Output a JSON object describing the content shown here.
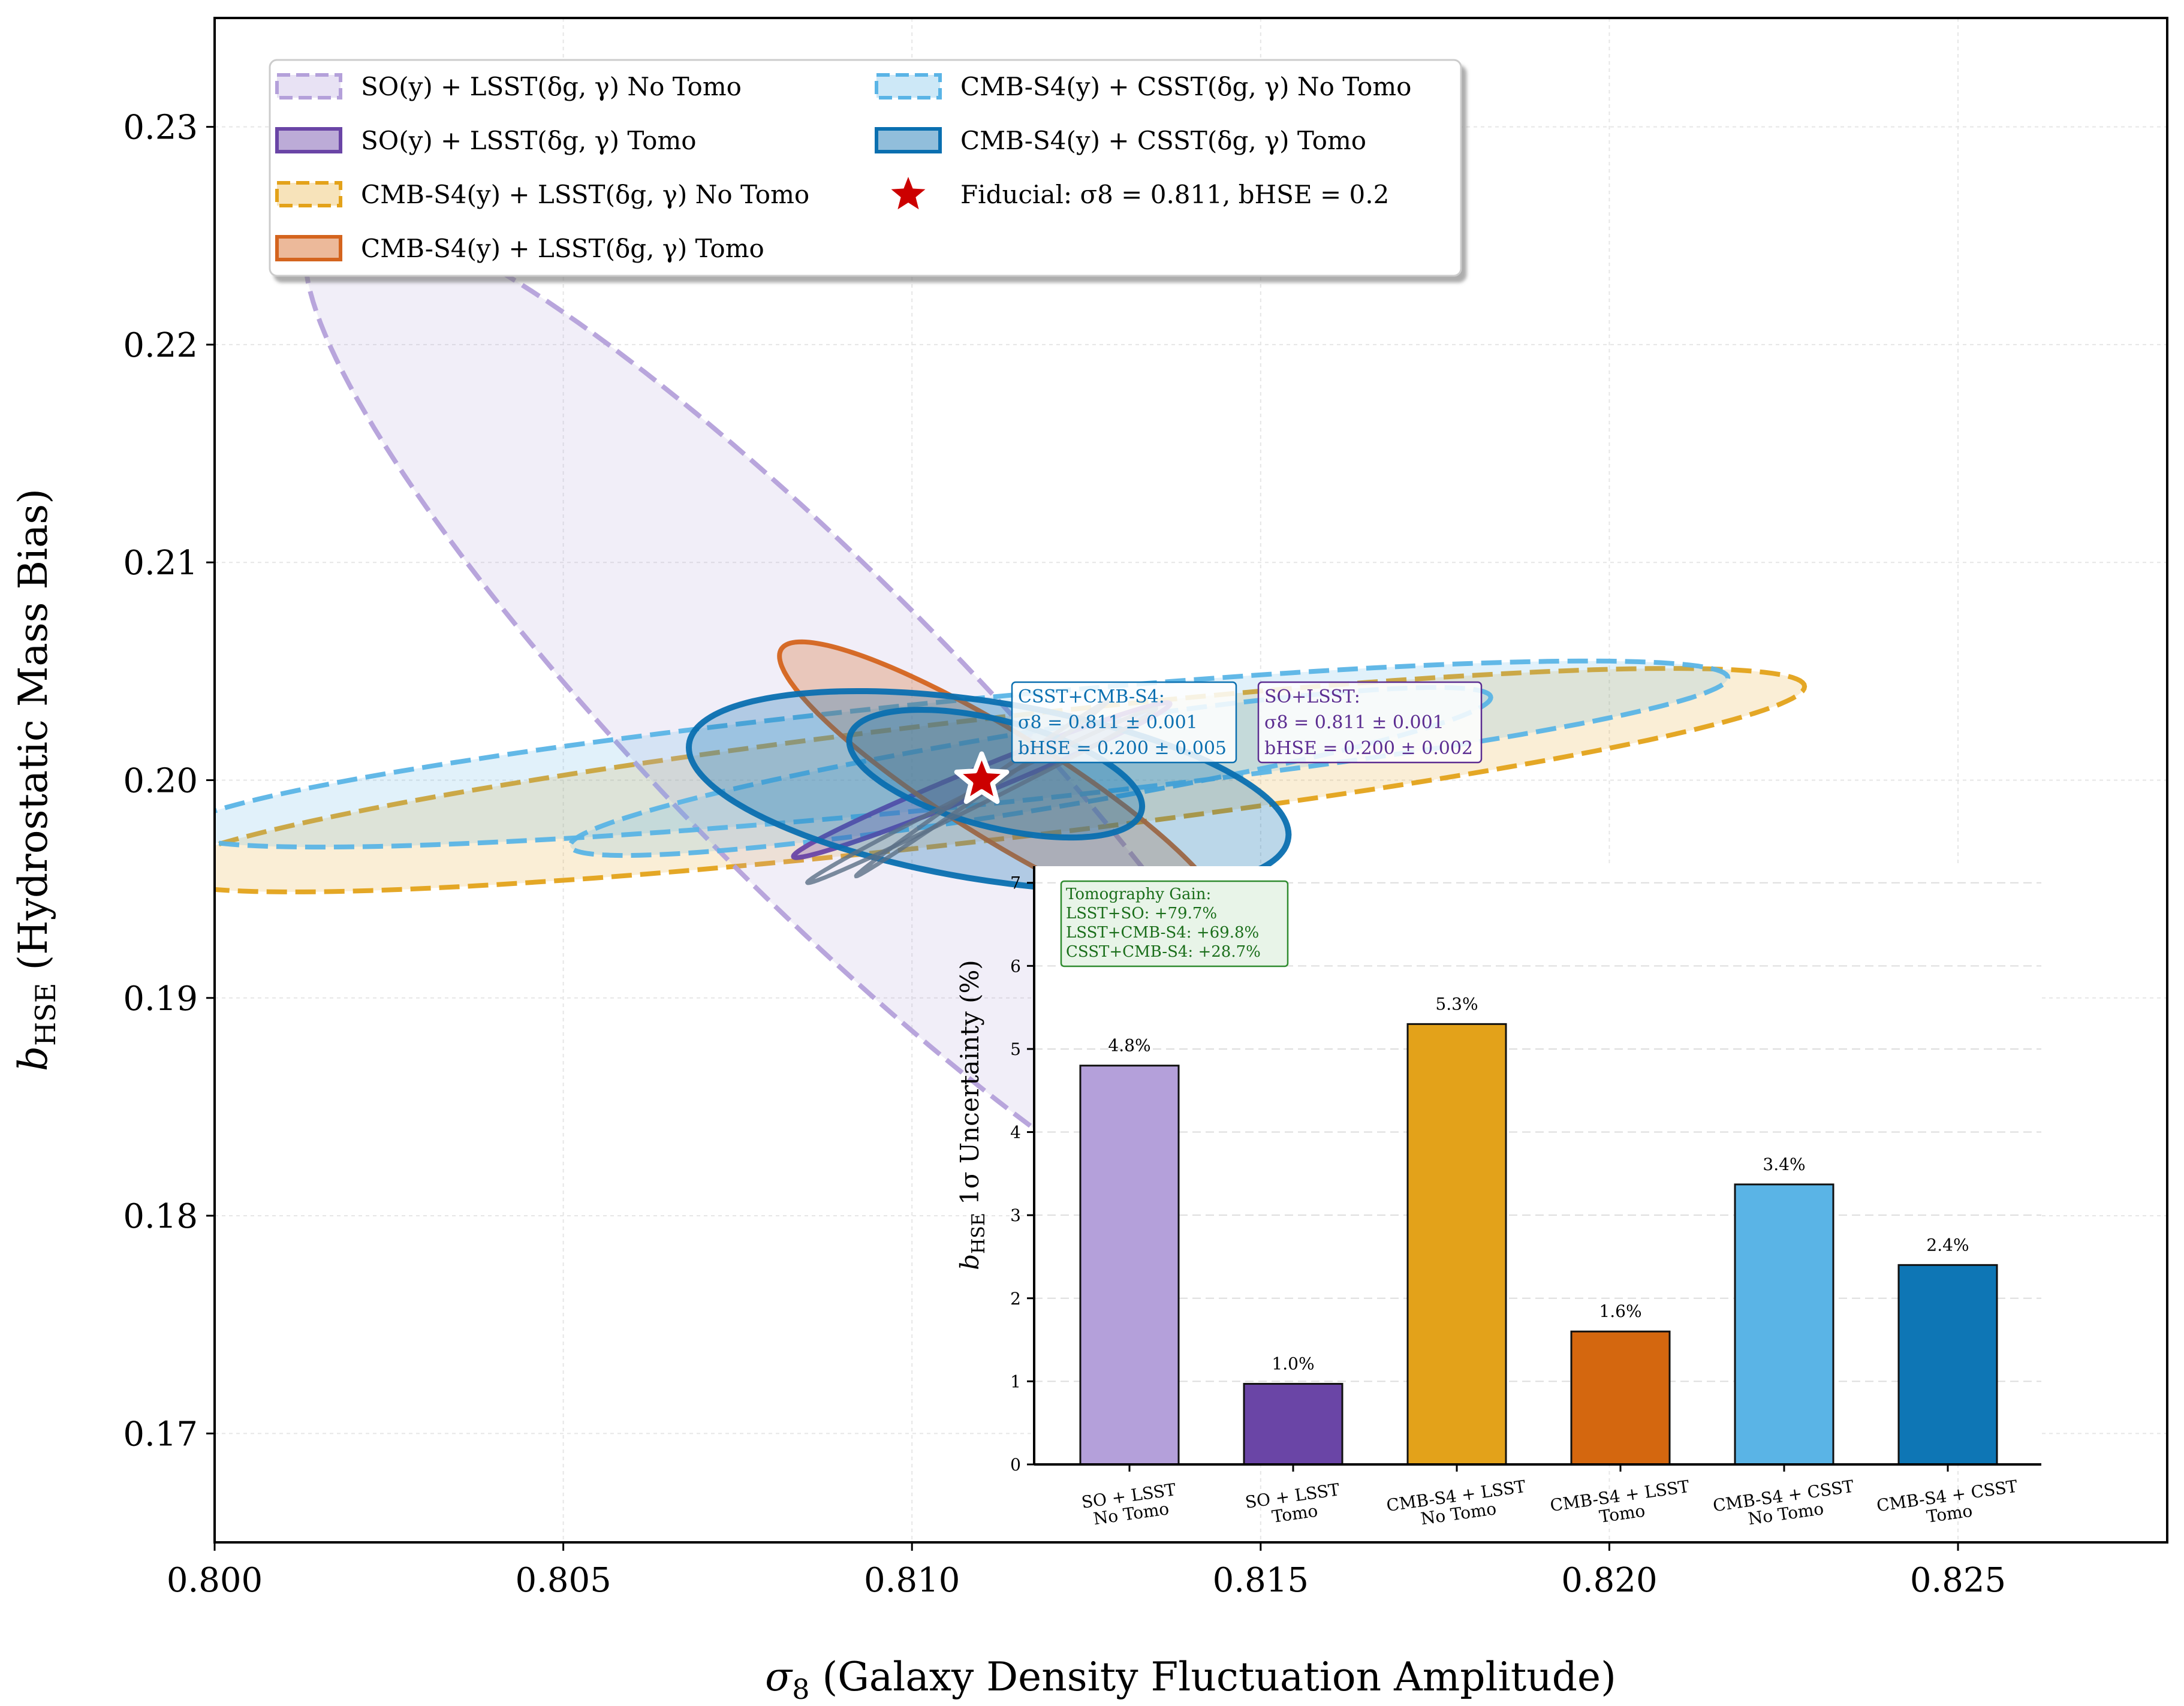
{
  "chart_data": [
    {
      "type": "scatter",
      "subtype": "fisher-confidence-ellipses",
      "xlabel": "σ8 (Galaxy Density Fluctuation Amplitude)",
      "ylabel": "bHSE (Hydrostatic Mass Bias)",
      "xlim": [
        0.8,
        0.828
      ],
      "ylim": [
        0.165,
        0.235
      ],
      "xticks": [
        0.8,
        0.805,
        0.81,
        0.815,
        0.82,
        0.825
      ],
      "xtick_labels": [
        "0.800",
        "0.805",
        "0.810",
        "0.815",
        "0.820",
        "0.825"
      ],
      "yticks": [
        0.17,
        0.18,
        0.19,
        0.2,
        0.21,
        0.22,
        0.23
      ],
      "ytick_labels": [
        "0.17",
        "0.18",
        "0.19",
        "0.20",
        "0.21",
        "0.22",
        "0.23"
      ],
      "grid": true,
      "legend_position": "top-left",
      "fiducial": {
        "x": 0.811,
        "y": 0.2,
        "label": "Fiducial: σ8 = 0.811, bHSE = 0.2",
        "color": "#cc0000"
      },
      "series": [
        {
          "name": "SO(y) + LSST(δg, γ) No Tomo",
          "color": "#b4a0da",
          "style": "dashed",
          "ellipses": [
            {
              "cx": 0.8087,
              "cy": 0.202,
              "rx": 0.0074,
              "ry": 0.028,
              "angle": -0.022
            }
          ]
        },
        {
          "name": "SO(y) + LSST(δg, γ) Tomo",
          "color": "#6a45a6",
          "style": "solid",
          "ellipses": [
            {
              "cx": 0.811,
              "cy": 0.2,
              "rx": 0.0027,
              "ry": 0.0018,
              "angle": 0.0035
            }
          ]
        },
        {
          "name": "CMB-S4(y) + LSST(δg, γ) No Tomo",
          "color": "#e3a21a",
          "style": "dashed",
          "ellipses": [
            {
              "cx": 0.811,
              "cy": 0.2,
              "rx": 0.0118,
              "ry": 0.008,
              "angle": 0.0043
            }
          ]
        },
        {
          "name": "CMB-S4(y) + LSST(δg, γ) Tomo",
          "color": "#d4641e",
          "style": "solid",
          "ellipses": [
            {
              "cx": 0.8113,
              "cy": 0.1997,
              "rx": 0.0032,
              "ry": 0.0082,
              "angle": -0.006
            }
          ]
        },
        {
          "name": "CMB-S4(y) + CSST(δg, γ) No Tomo",
          "color": "#5ab4e6",
          "style": "dashed",
          "ellipses": [
            {
              "cx": 0.8106,
              "cy": 0.2012,
              "rx": 0.0111,
              "ry": 0.007,
              "angle": 0.0035
            },
            {
              "cx": 0.8117,
              "cy": 0.2004,
              "rx": 0.0066,
              "ry": 0.0052,
              "angle": 0.0034
            }
          ]
        },
        {
          "name": "CMB-S4(y) + CSST(δg, γ) Tomo",
          "color": "#0a6fb0",
          "style": "solid",
          "ellipses": [
            {
              "cx": 0.8111,
              "cy": 0.1995,
              "rx": 0.0043,
              "ry": 0.0118,
              "angle": -0.002
            },
            {
              "cx": 0.8112,
              "cy": 0.2003,
              "rx": 0.0021,
              "ry": 0.0072,
              "angle": -0.0015
            }
          ]
        }
      ],
      "inner_contours": [
        {
          "cx": 0.811,
          "cy": 0.1993,
          "rx": 0.0025,
          "ry": 0.0011,
          "angle": 0.004,
          "color": "#5b6f86"
        },
        {
          "cx": 0.811,
          "cy": 0.1996,
          "rx": 0.0018,
          "ry": 0.0007,
          "angle": 0.004,
          "color": "#5b6f86"
        }
      ],
      "annotations": [
        {
          "id": "csst",
          "title": "CSST+CMB-S4:",
          "line1": "σ8 = 0.811 ± 0.001",
          "line2": "bHSE = 0.200 ± 0.005",
          "color": "#0a6fb0"
        },
        {
          "id": "so",
          "title": "SO+LSST:",
          "line1": "σ8 = 0.811 ± 0.001",
          "line2": "bHSE = 0.200 ± 0.002",
          "color": "#5c2d91"
        }
      ]
    },
    {
      "type": "bar",
      "ylabel": "bHSE 1σ Uncertainty (%)",
      "ylim": [
        0,
        7.2
      ],
      "yticks": [
        0,
        1,
        2,
        3,
        4,
        5,
        6,
        7
      ],
      "ytick_labels": [
        "0",
        "1",
        "2",
        "3",
        "4",
        "5",
        "6",
        "7"
      ],
      "grid": true,
      "categories": [
        [
          "SO + LSST",
          "No Tomo"
        ],
        [
          "SO + LSST",
          "Tomo"
        ],
        [
          "CMB-S4 + LSST",
          "No Tomo"
        ],
        [
          "CMB-S4 + LSST",
          "Tomo"
        ],
        [
          "CMB-S4 + CSST",
          "No Tomo"
        ],
        [
          "CMB-S4 + CSST",
          "Tomo"
        ]
      ],
      "values": [
        4.8,
        1.0,
        5.3,
        1.6,
        3.4,
        2.4
      ],
      "bar_heights": [
        4.8,
        0.97,
        5.3,
        1.6,
        3.37,
        2.4
      ],
      "value_labels": [
        "4.8%",
        "1.0%",
        "5.3%",
        "1.6%",
        "3.4%",
        "2.4%"
      ],
      "colors": [
        "#b4a0da",
        "#6a45a6",
        "#e3a21a",
        "#d4670f",
        "#5ab4e6",
        "#0e76b5"
      ],
      "gain_box": {
        "title": "Tomography Gain:",
        "lines": [
          "LSST+SO: +79.7%",
          "LSST+CMB-S4: +69.8%",
          "CSST+CMB-S4: +28.7%"
        ]
      }
    }
  ]
}
